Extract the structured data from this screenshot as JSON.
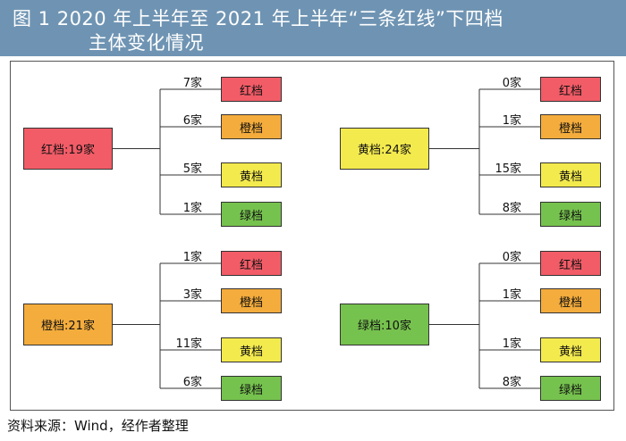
{
  "header": {
    "title_line1": "图 1   2020 年上半年至 2021 年上半年“三条红线”下四档",
    "title_line2": "主体变化情况"
  },
  "colors": {
    "red": "#f25c67",
    "orange": "#f4ac3c",
    "yellow": "#f3ea4e",
    "green": "#76c24e",
    "header_bg": "#6f94b3"
  },
  "groups": [
    {
      "source": {
        "label": "红档:19家",
        "color": "red"
      },
      "targets": [
        {
          "count": "7家",
          "label": "红档",
          "color": "red"
        },
        {
          "count": "6家",
          "label": "橙档",
          "color": "orange"
        },
        {
          "count": "5家",
          "label": "黄档",
          "color": "yellow"
        },
        {
          "count": "1家",
          "label": "绿档",
          "color": "green"
        }
      ]
    },
    {
      "source": {
        "label": "黄档:24家",
        "color": "yellow"
      },
      "targets": [
        {
          "count": "0家",
          "label": "红档",
          "color": "red"
        },
        {
          "count": "1家",
          "label": "橙档",
          "color": "orange"
        },
        {
          "count": "15家",
          "label": "黄档",
          "color": "yellow"
        },
        {
          "count": "8家",
          "label": "绿档",
          "color": "green"
        }
      ]
    },
    {
      "source": {
        "label": "橙档:21家",
        "color": "orange"
      },
      "targets": [
        {
          "count": "1家",
          "label": "红档",
          "color": "red"
        },
        {
          "count": "3家",
          "label": "橙档",
          "color": "orange"
        },
        {
          "count": "11家",
          "label": "黄档",
          "color": "yellow"
        },
        {
          "count": "6家",
          "label": "绿档",
          "color": "green"
        }
      ]
    },
    {
      "source": {
        "label": "绿档:10家",
        "color": "green"
      },
      "targets": [
        {
          "count": "0家",
          "label": "红档",
          "color": "red"
        },
        {
          "count": "1家",
          "label": "橙档",
          "color": "orange"
        },
        {
          "count": "1家",
          "label": "黄档",
          "color": "yellow"
        },
        {
          "count": "8家",
          "label": "绿档",
          "color": "green"
        }
      ]
    }
  ],
  "footer": {
    "source_text": "资料来源：Wind，经作者整理"
  }
}
